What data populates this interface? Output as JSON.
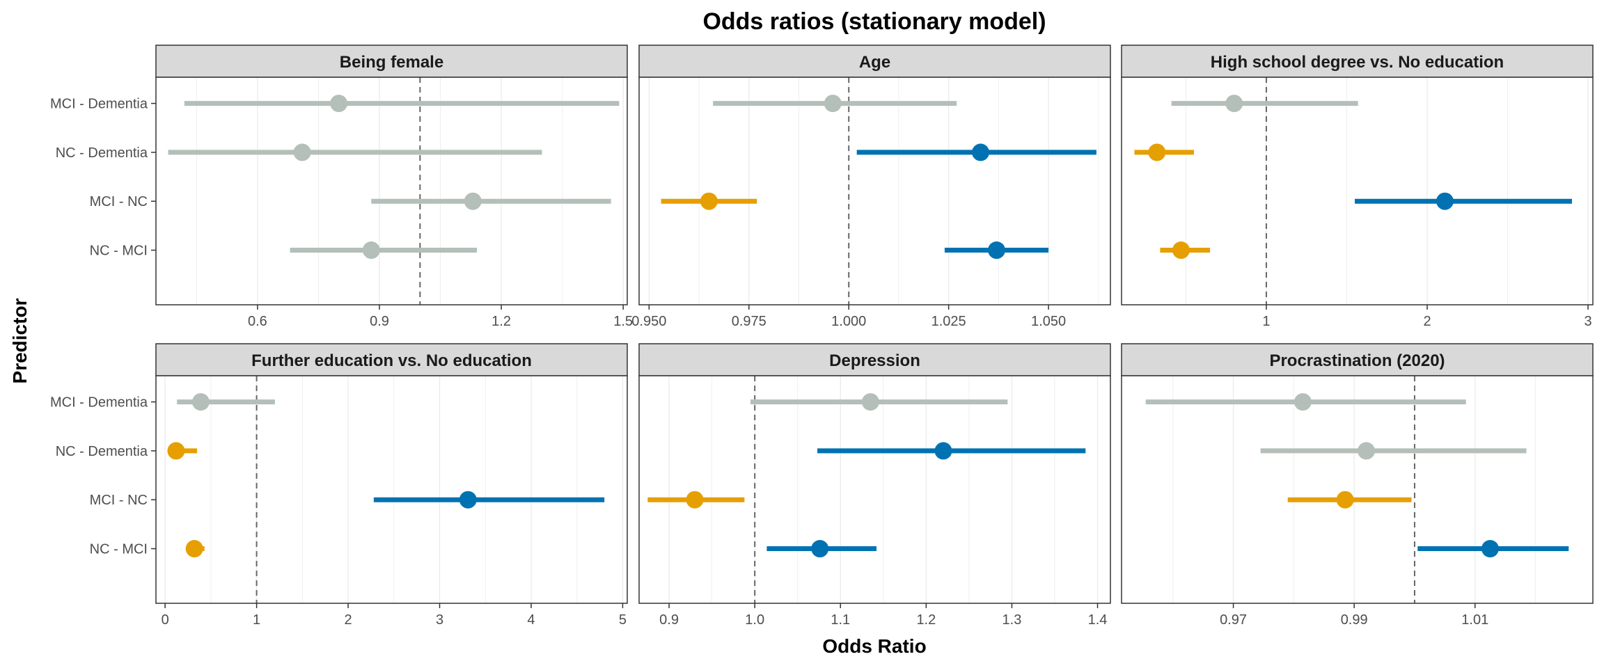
{
  "chart_data": {
    "type": "forest",
    "title": "Odds ratios (stationary model)",
    "xlabel": "Odds Ratio",
    "ylabel": "Predictor",
    "rows": [
      "MCI - Dementia",
      "NC - Dementia",
      "MCI - NC",
      "NC - MCI"
    ],
    "colors": {
      "ns": "#b3bfb8",
      "lower": "#e69f00",
      "higher": "#0072b2"
    },
    "reference_line": 1,
    "grid": true,
    "panels": [
      {
        "name": "Being female",
        "xlim": [
          0.35,
          1.51
        ],
        "ticks": [
          0.6,
          0.9,
          1.2,
          1.5
        ],
        "tick_labels": [
          "0.6",
          "0.9",
          "1.2",
          "1.5"
        ],
        "points": [
          {
            "row": "MCI - Dementia",
            "estimate": 0.8,
            "lower": 0.42,
            "upper": 1.49,
            "group": "ns"
          },
          {
            "row": "NC - Dementia",
            "estimate": 0.71,
            "lower": 0.38,
            "upper": 1.3,
            "group": "ns"
          },
          {
            "row": "MCI - NC",
            "estimate": 1.13,
            "lower": 0.88,
            "upper": 1.47,
            "group": "ns"
          },
          {
            "row": "NC - MCI",
            "estimate": 0.88,
            "lower": 0.68,
            "upper": 1.14,
            "group": "ns"
          }
        ]
      },
      {
        "name": "Age",
        "xlim": [
          0.9475,
          1.0655
        ],
        "ticks": [
          0.95,
          0.975,
          1.0,
          1.025,
          1.05
        ],
        "tick_labels": [
          "0.950",
          "0.975",
          "1.000",
          "1.025",
          "1.050"
        ],
        "points": [
          {
            "row": "MCI - Dementia",
            "estimate": 0.996,
            "lower": 0.966,
            "upper": 1.027,
            "group": "ns"
          },
          {
            "row": "NC - Dementia",
            "estimate": 1.033,
            "lower": 1.002,
            "upper": 1.062,
            "group": "higher"
          },
          {
            "row": "MCI - NC",
            "estimate": 0.965,
            "lower": 0.953,
            "upper": 0.977,
            "group": "lower"
          },
          {
            "row": "NC - MCI",
            "estimate": 1.037,
            "lower": 1.024,
            "upper": 1.05,
            "group": "higher"
          }
        ]
      },
      {
        "name": "High school degree vs. No education",
        "xlim": [
          0.1,
          3.03
        ],
        "ticks": [
          1,
          2,
          3
        ],
        "tick_labels": [
          "1",
          "2",
          "3"
        ],
        "points": [
          {
            "row": "MCI - Dementia",
            "estimate": 0.8,
            "lower": 0.41,
            "upper": 1.57,
            "group": "ns"
          },
          {
            "row": "NC - Dementia",
            "estimate": 0.32,
            "lower": 0.18,
            "upper": 0.55,
            "group": "lower"
          },
          {
            "row": "MCI - NC",
            "estimate": 2.11,
            "lower": 1.55,
            "upper": 2.9,
            "group": "higher"
          },
          {
            "row": "NC - MCI",
            "estimate": 0.47,
            "lower": 0.34,
            "upper": 0.65,
            "group": "lower"
          }
        ]
      },
      {
        "name": "Further education vs. No education",
        "xlim": [
          -0.1,
          5.05
        ],
        "ticks": [
          0,
          1,
          2,
          3,
          4,
          5
        ],
        "tick_labels": [
          "0",
          "1",
          "2",
          "3",
          "4",
          "5"
        ],
        "points": [
          {
            "row": "MCI - Dementia",
            "estimate": 0.39,
            "lower": 0.13,
            "upper": 1.2,
            "group": "ns"
          },
          {
            "row": "NC - Dementia",
            "estimate": 0.12,
            "lower": 0.05,
            "upper": 0.35,
            "group": "lower"
          },
          {
            "row": "MCI - NC",
            "estimate": 3.31,
            "lower": 2.28,
            "upper": 4.8,
            "group": "higher"
          },
          {
            "row": "NC - MCI",
            "estimate": 0.32,
            "lower": 0.24,
            "upper": 0.43,
            "group": "lower"
          }
        ]
      },
      {
        "name": "Depression",
        "xlim": [
          0.865,
          1.415
        ],
        "ticks": [
          0.9,
          1.0,
          1.1,
          1.2,
          1.3,
          1.4
        ],
        "tick_labels": [
          "0.9",
          "1.0",
          "1.1",
          "1.2",
          "1.3",
          "1.4"
        ],
        "points": [
          {
            "row": "MCI - Dementia",
            "estimate": 1.135,
            "lower": 0.995,
            "upper": 1.295,
            "group": "ns"
          },
          {
            "row": "NC - Dementia",
            "estimate": 1.22,
            "lower": 1.073,
            "upper": 1.386,
            "group": "higher"
          },
          {
            "row": "MCI - NC",
            "estimate": 0.93,
            "lower": 0.875,
            "upper": 0.988,
            "group": "lower"
          },
          {
            "row": "NC - MCI",
            "estimate": 1.076,
            "lower": 1.014,
            "upper": 1.142,
            "group": "higher"
          }
        ]
      },
      {
        "name": "Procrastination (2020)",
        "xlim": [
          0.9515,
          1.0295
        ],
        "ticks": [
          0.97,
          0.99,
          1.01
        ],
        "tick_labels": [
          "0.97",
          "0.99",
          "1.01"
        ],
        "points": [
          {
            "row": "MCI - Dementia",
            "estimate": 0.9815,
            "lower": 0.9555,
            "upper": 1.0085,
            "group": "ns"
          },
          {
            "row": "NC - Dementia",
            "estimate": 0.992,
            "lower": 0.9745,
            "upper": 1.0185,
            "group": "ns"
          },
          {
            "row": "MCI - NC",
            "estimate": 0.9885,
            "lower": 0.979,
            "upper": 0.9995,
            "group": "lower"
          },
          {
            "row": "NC - MCI",
            "estimate": 1.0125,
            "lower": 1.0005,
            "upper": 1.0255,
            "group": "higher"
          }
        ]
      }
    ]
  }
}
